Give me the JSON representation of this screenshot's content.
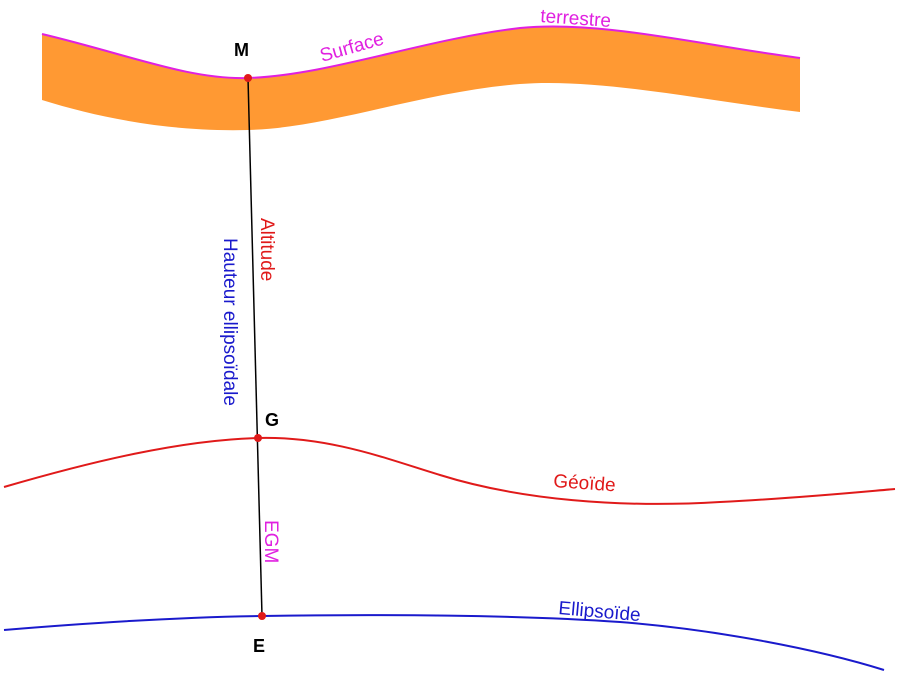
{
  "points": {
    "m": "M",
    "g": "G",
    "e": "E"
  },
  "labels": {
    "surface": "Surface",
    "terrestre": "terrestre",
    "altitude": "Altitude",
    "hauteur": "Hauteur ellipsoïdale",
    "egm": "EGM",
    "geoide": "Géoïde",
    "ellipsoide": "Ellipsoïde"
  },
  "colors": {
    "terrain_band": "#FF9933",
    "surface_line": "#E020E0",
    "geoid": "#E01A1A",
    "ellipsoid": "#1A1ACC",
    "vertical": "#000000",
    "point_marker": "#E01A1A",
    "egm_label": "#E020E0",
    "hauteur_label": "#1A1ACC",
    "altitude_label": "#E01A1A"
  }
}
